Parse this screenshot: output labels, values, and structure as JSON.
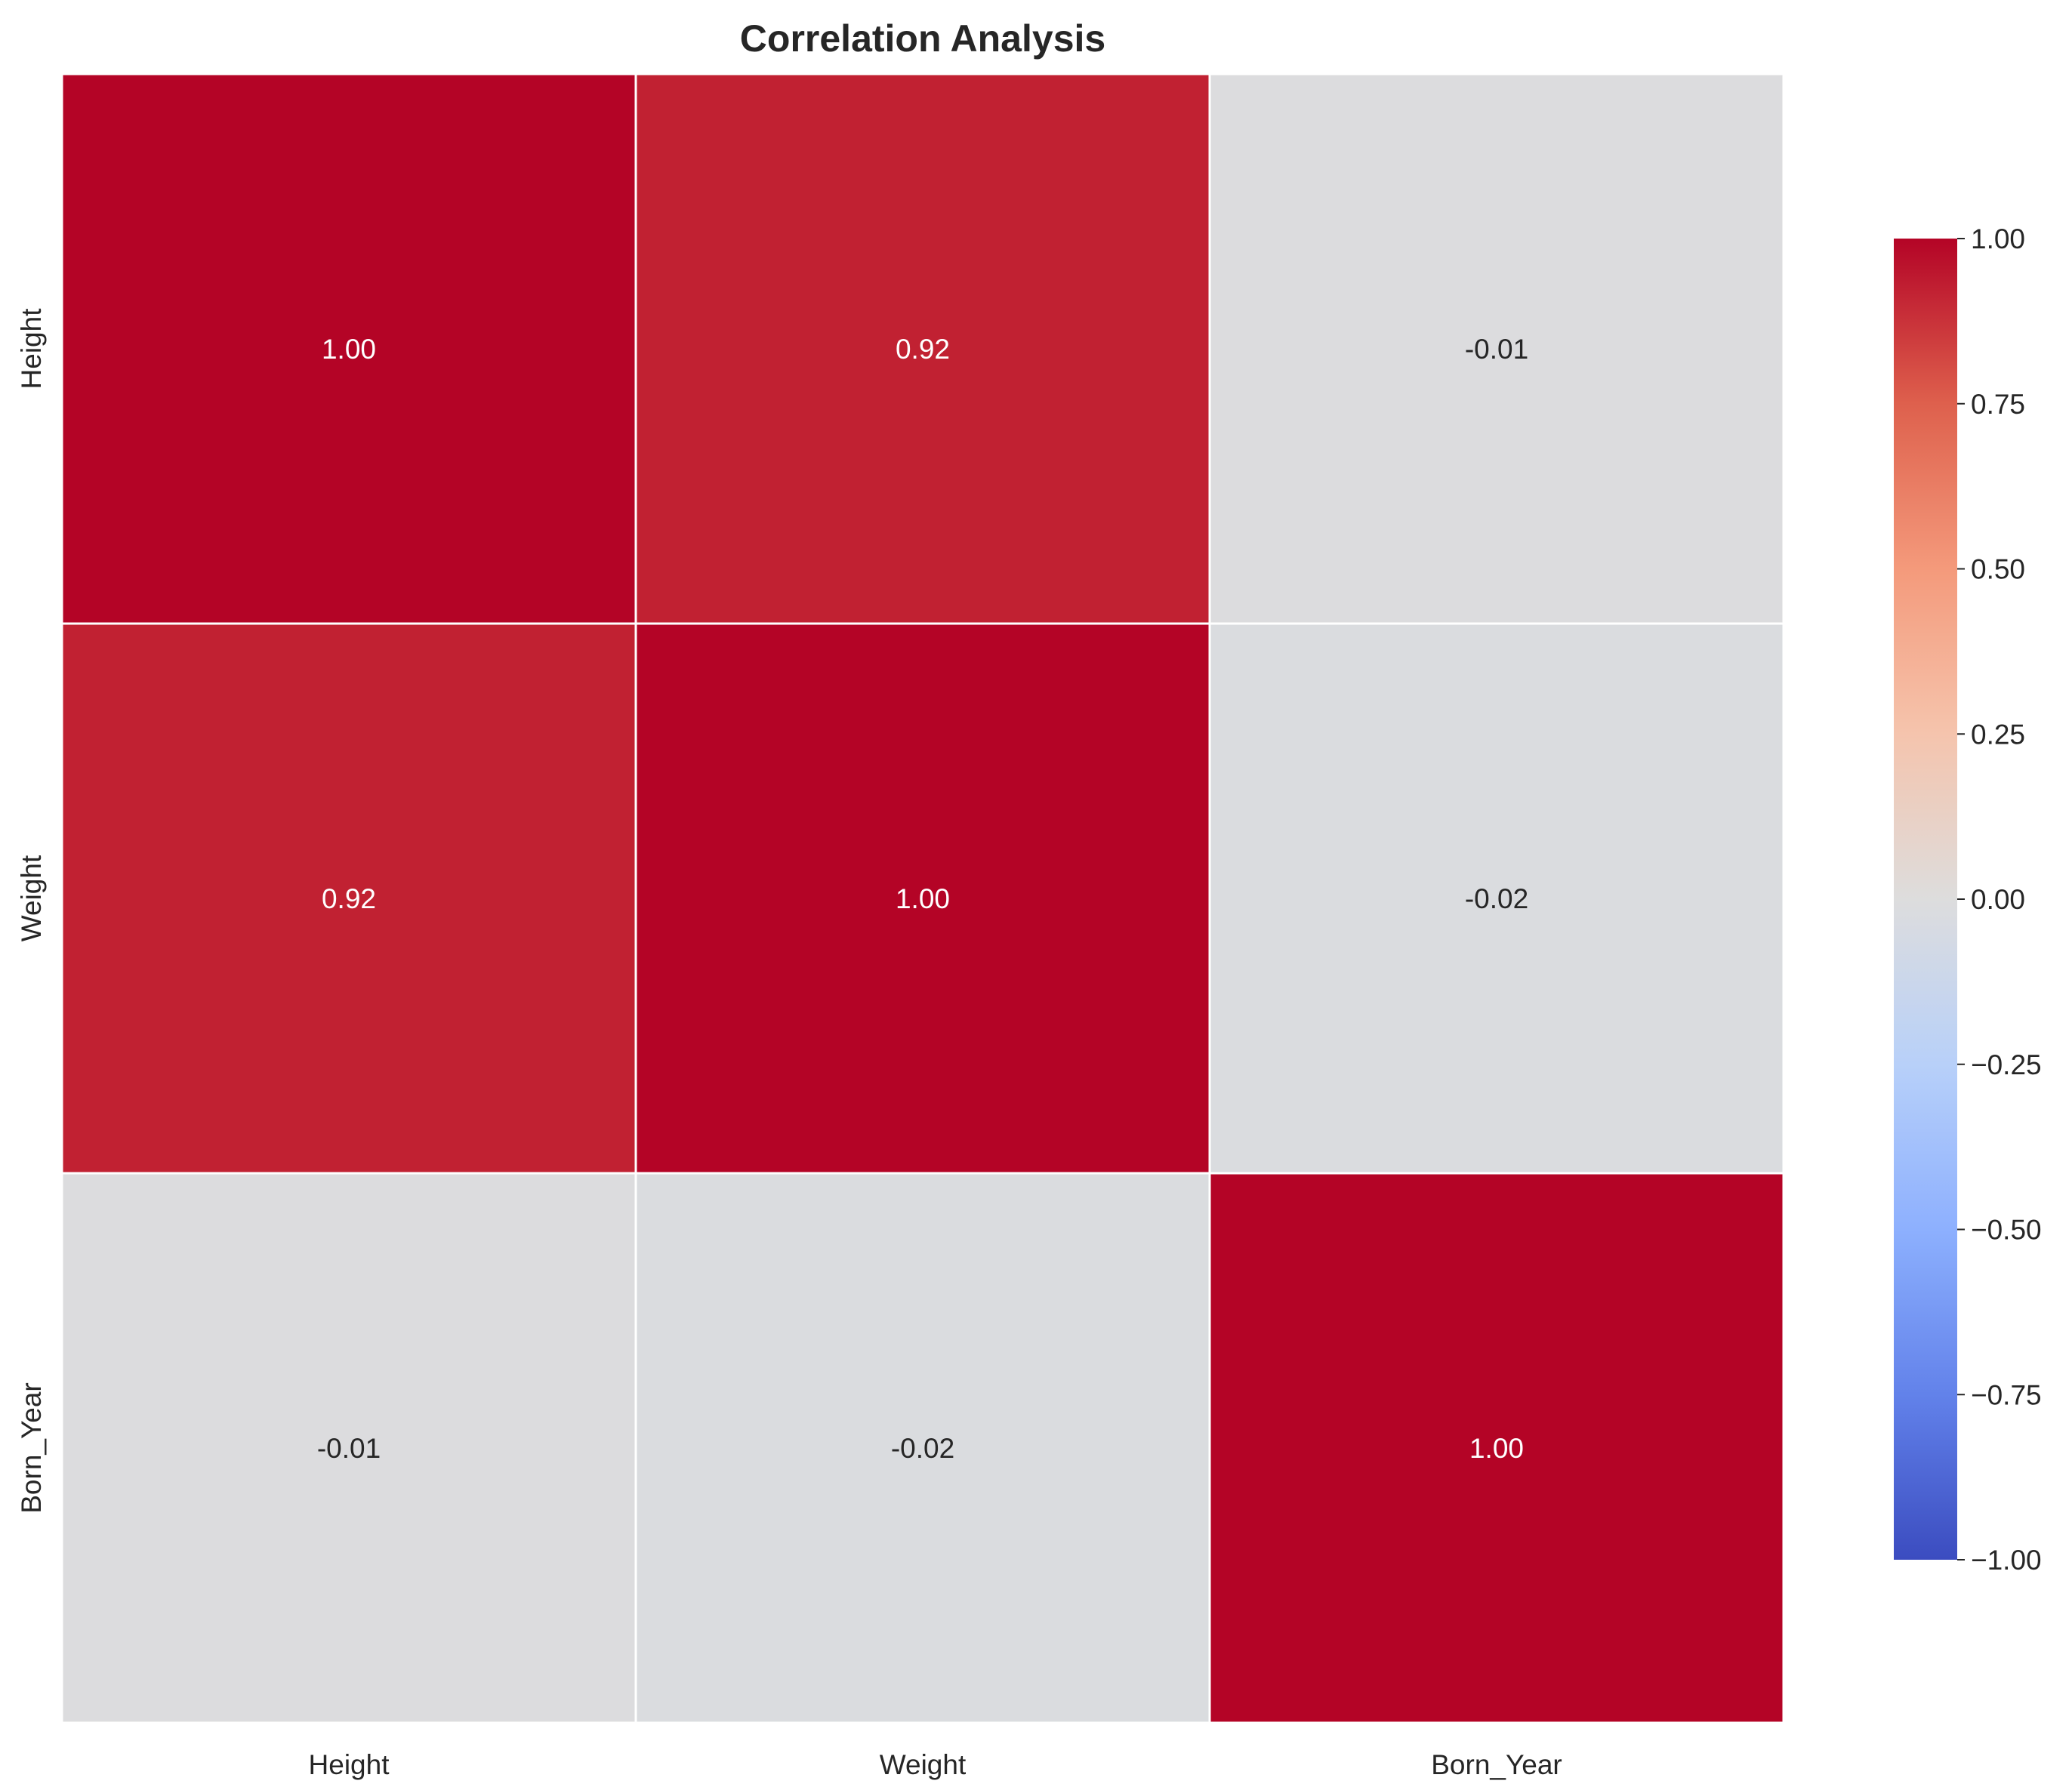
{
  "chart_data": {
    "type": "heatmap",
    "title": "Correlation Analysis",
    "xlabel": "",
    "ylabel": "",
    "x_categories": [
      "Height",
      "Weight",
      "Born_Year"
    ],
    "y_categories": [
      "Height",
      "Weight",
      "Born_Year"
    ],
    "values": [
      [
        1.0,
        0.92,
        -0.01
      ],
      [
        0.92,
        1.0,
        -0.02
      ],
      [
        -0.01,
        -0.02,
        1.0
      ]
    ],
    "annotation_format": "0.00",
    "colormap": "coolwarm",
    "colorbar": {
      "range": [
        -1.0,
        1.0
      ],
      "ticks": [
        1.0,
        0.75,
        0.5,
        0.25,
        0.0,
        -0.25,
        -0.5,
        -0.75,
        -1.0
      ],
      "tick_labels": [
        "1.00",
        "0.75",
        "0.50",
        "0.25",
        "0.00",
        "−0.25",
        "−0.50",
        "−0.75",
        "−1.00"
      ],
      "placement": "right"
    },
    "cell_divider_color": "#ffffff",
    "grid": false
  }
}
